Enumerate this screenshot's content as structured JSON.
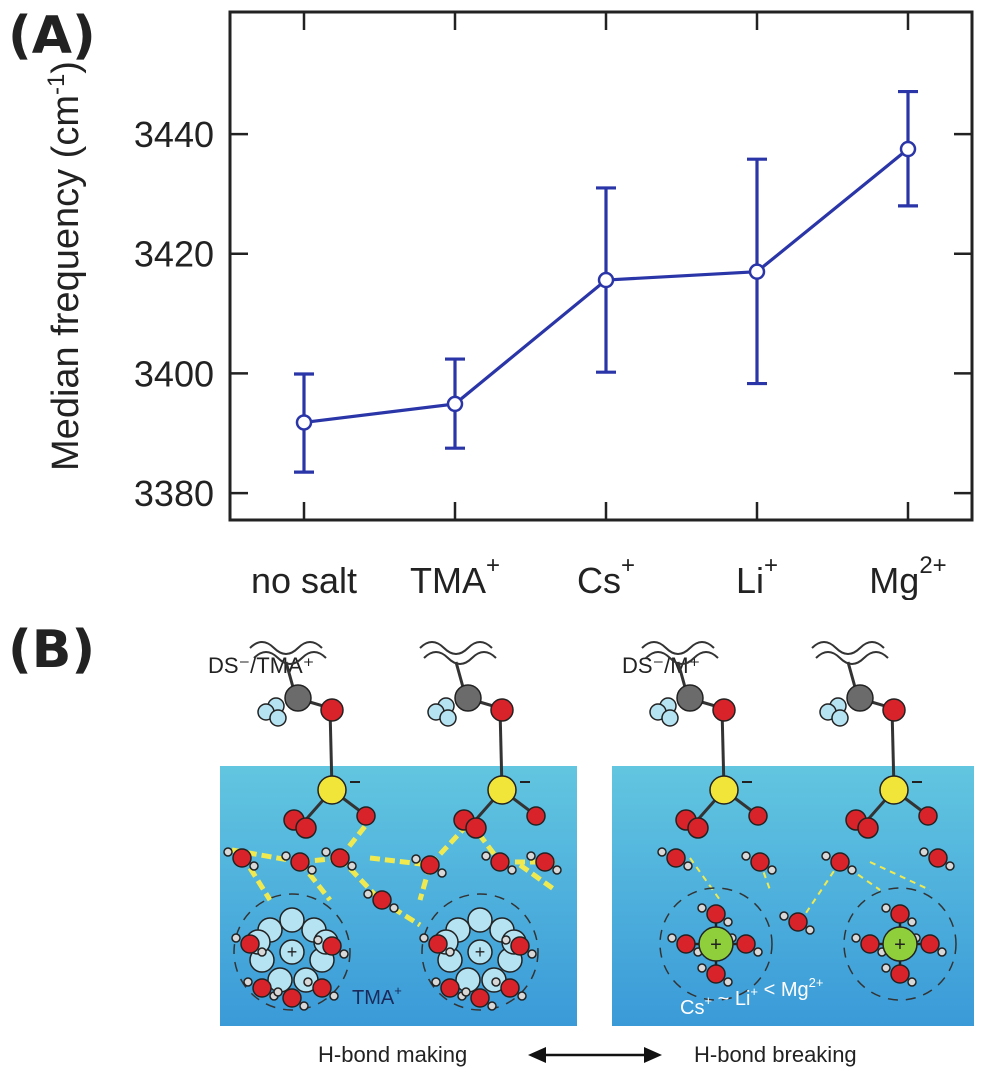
{
  "panel_a": {
    "label": "(A)"
  },
  "panel_b": {
    "label": "(B)",
    "left_box": {
      "title": "DS⁻/TMA⁺",
      "ion_label": "TMA",
      "ion_sup": "+"
    },
    "right_box": {
      "title": "DS⁻/M⁺",
      "order": [
        {
          "base": "Cs",
          "sup": "+"
        },
        {
          "sep": " ~ "
        },
        {
          "base": "Li",
          "sup": "+"
        },
        {
          "sep": " < "
        },
        {
          "base": "Mg",
          "sup": "2+"
        }
      ]
    },
    "caption_left": "H-bond making",
    "caption_right": "H-bond breaking"
  },
  "chart_data": {
    "type": "line",
    "categories": [
      {
        "base": "no salt",
        "sup": ""
      },
      {
        "base": "TMA",
        "sup": "+"
      },
      {
        "base": "Cs",
        "sup": "+"
      },
      {
        "base": "Li",
        "sup": "+"
      },
      {
        "base": "Mg",
        "sup": "2+"
      }
    ],
    "values": [
      3391.8,
      3394.9,
      3415.6,
      3417.0,
      3437.5
    ],
    "err_low": [
      3383.5,
      3387.5,
      3400.2,
      3398.3,
      3428.0
    ],
    "err_high": [
      3399.9,
      3402.4,
      3431.0,
      3435.8,
      3447.1
    ],
    "ylabel": "Median frequency (cm",
    "ylabel_sup": "-1",
    "ylabel_close": ")",
    "yticks": [
      3380,
      3400,
      3420,
      3440
    ],
    "ylim": [
      3375.5,
      3460.4
    ],
    "color": "#2a35a8"
  },
  "colors": {
    "water_top": "#5cc4dc",
    "water_bottom": "#3a9fd8",
    "oxygen": "#d8232a",
    "sulfur": "#f2e53a",
    "carbon": "#6b6b6b",
    "hydrogen": "#b5e3f2",
    "metal": "#8fcf3c",
    "hbond": "#f0ea50"
  }
}
